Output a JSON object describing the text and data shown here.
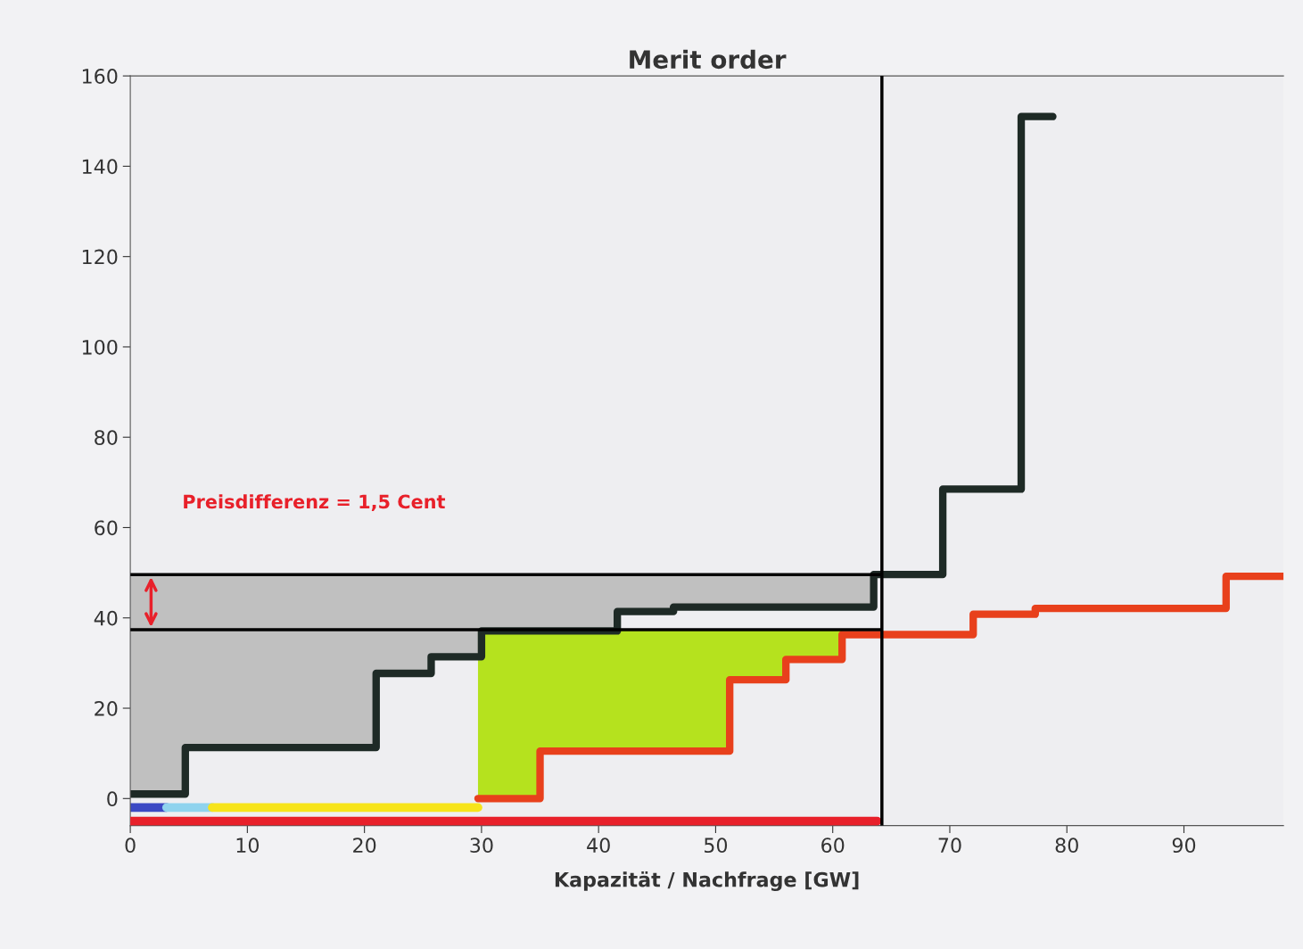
{
  "chart_data": {
    "type": "step",
    "title": "Merit order",
    "xlabel": "Kapazität / Nachfrage [GW]",
    "xlim": [
      0,
      98.5
    ],
    "ylim": [
      -6,
      160
    ],
    "xticks": [
      0,
      10,
      20,
      30,
      40,
      50,
      60,
      70,
      80,
      90
    ],
    "yticks": [
      0,
      20,
      40,
      60,
      80,
      100,
      120,
      140,
      160
    ],
    "grid": false,
    "legend": false,
    "series": [
      {
        "type": "area",
        "color": "#c0c0c0",
        "x": [
          0,
          4.7,
          21,
          25.7,
          30,
          41.6,
          46.4,
          63.5
        ],
        "values": [
          49.6,
          49.6,
          49.6,
          49.6,
          49.6,
          49.6,
          49.6,
          49.6
        ]
      },
      {
        "type": "area",
        "color": "#b5e21e",
        "x": [
          29.7,
          35,
          51.2,
          56,
          60.8
        ],
        "values": [
          37.4,
          37.4,
          37.4,
          37.4,
          37.4
        ]
      },
      {
        "color": "#1e2a26",
        "x": [
          0,
          4.7,
          21,
          25.7,
          30,
          41.6,
          46.4,
          63.5,
          69.4,
          76.1,
          78.8
        ],
        "values": [
          1,
          11.3,
          27.7,
          31.4,
          37.1,
          41.4,
          42.4,
          49.6,
          68.5,
          151,
          151
        ]
      },
      {
        "color": "#e8401c",
        "x": [
          29.7,
          35,
          51.2,
          56,
          60.8,
          72,
          77.3,
          93.6,
          98.5
        ],
        "values": [
          0,
          10.5,
          26.3,
          30.8,
          36.3,
          40.8,
          42.1,
          49.2,
          49.2
        ]
      },
      {
        "type": "line",
        "color": "#3b49c4",
        "x": [
          0,
          3.1
        ],
        "values": [
          -2,
          -2
        ]
      },
      {
        "type": "line",
        "color": "#8fd3ee",
        "x": [
          3.1,
          7
        ],
        "values": [
          -2,
          -2
        ]
      },
      {
        "type": "line",
        "color": "#f7e41a",
        "x": [
          7,
          29.7
        ],
        "values": [
          -2,
          -2
        ]
      },
      {
        "type": "line",
        "color": "#e8202a",
        "x": [
          0,
          63.8
        ],
        "values": [
          -5,
          -5
        ]
      }
    ],
    "ref_lines": [
      {
        "axis": "y",
        "value": 49.6,
        "color": "#000000"
      },
      {
        "axis": "y",
        "value": 37.4,
        "color": "#000000"
      },
      {
        "axis": "x",
        "value": 64.2,
        "color": "#000000"
      }
    ],
    "annotations": [
      "Preisdifferenz = 1,5 Cent"
    ]
  }
}
